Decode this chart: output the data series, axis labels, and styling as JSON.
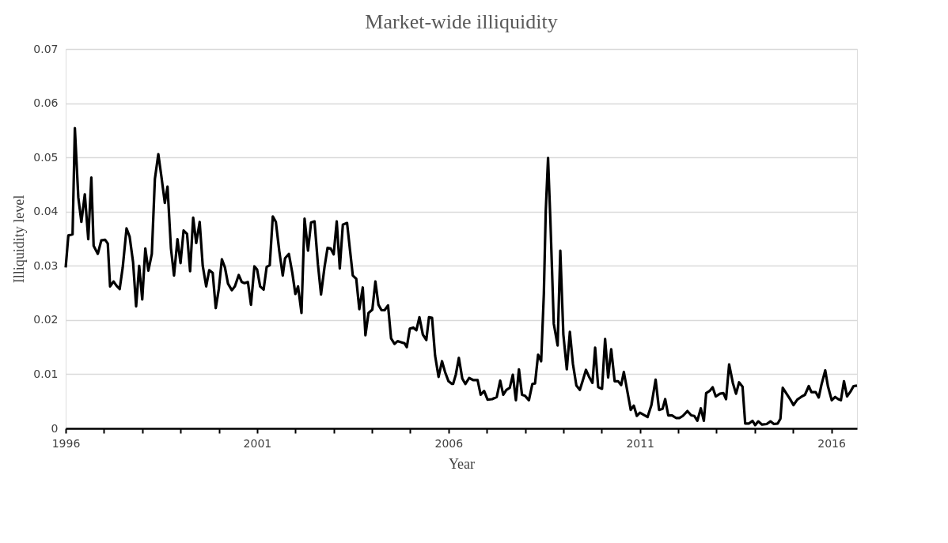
{
  "chart_data": {
    "type": "line",
    "title": "Market-wide illiquidity",
    "xlabel": "Year",
    "ylabel": "Illiquidity level",
    "x": [
      1996.0,
      1996.07,
      1996.18,
      1996.24,
      1996.33,
      1996.41,
      1996.5,
      1996.59,
      1996.67,
      1996.73,
      1996.84,
      1996.93,
      1997.03,
      1997.1,
      1997.16,
      1997.25,
      1997.33,
      1997.41,
      1997.49,
      1997.59,
      1997.67,
      1997.76,
      1997.84,
      1997.92,
      1998.0,
      1998.08,
      1998.16,
      1998.25,
      1998.33,
      1998.42,
      1998.5,
      1998.59,
      1998.66,
      1998.75,
      1998.83,
      1998.92,
      1999.0,
      1999.08,
      1999.17,
      1999.25,
      1999.33,
      1999.41,
      1999.5,
      1999.58,
      1999.67,
      1999.75,
      1999.84,
      1999.92,
      2000.0,
      2000.08,
      2000.16,
      2000.24,
      2000.34,
      2000.42,
      2000.52,
      2000.6,
      2000.67,
      2000.76,
      2000.84,
      2000.93,
      2001.0,
      2001.08,
      2001.17,
      2001.25,
      2001.33,
      2001.41,
      2001.49,
      2001.58,
      2001.67,
      2001.73,
      2001.83,
      2001.92,
      2002.0,
      2002.07,
      2002.16,
      2002.24,
      2002.33,
      2002.41,
      2002.5,
      2002.59,
      2002.67,
      2002.76,
      2002.84,
      2002.92,
      2003.0,
      2003.08,
      2003.16,
      2003.24,
      2003.35,
      2003.43,
      2003.5,
      2003.59,
      2003.67,
      2003.76,
      2003.83,
      2003.91,
      2004.01,
      2004.09,
      2004.17,
      2004.25,
      2004.33,
      2004.42,
      2004.5,
      2004.59,
      2004.67,
      2004.76,
      2004.85,
      2004.91,
      2004.99,
      2005.08,
      2005.16,
      2005.24,
      2005.33,
      2005.42,
      2005.49,
      2005.57,
      2005.65,
      2005.74,
      2005.83,
      2005.91,
      2006.0,
      2006.09,
      2006.12,
      2006.19,
      2006.27,
      2006.36,
      2006.44,
      2006.54,
      2006.65,
      2006.76,
      2006.84,
      2006.93,
      2007.02,
      2007.14,
      2007.26,
      2007.35,
      2007.43,
      2007.51,
      2007.6,
      2007.68,
      2007.76,
      2007.84,
      2007.92,
      2008.0,
      2008.1,
      2008.19,
      2008.26,
      2008.34,
      2008.42,
      2008.49,
      2008.54,
      2008.6,
      2008.66,
      2008.75,
      2008.85,
      2008.92,
      2009.0,
      2009.09,
      2009.17,
      2009.25,
      2009.34,
      2009.43,
      2009.51,
      2009.59,
      2009.68,
      2009.76,
      2009.83,
      2009.91,
      2010.01,
      2010.09,
      2010.17,
      2010.25,
      2010.34,
      2010.43,
      2010.51,
      2010.58,
      2010.66,
      2010.76,
      2010.84,
      2010.92,
      2011.0,
      2011.2,
      2011.3,
      2011.41,
      2011.5,
      2011.59,
      2011.66,
      2011.74,
      2011.84,
      2011.95,
      2012.03,
      2012.12,
      2012.24,
      2012.34,
      2012.42,
      2012.5,
      2012.59,
      2012.67,
      2012.73,
      2012.82,
      2012.9,
      2012.98,
      2013.09,
      2013.18,
      2013.25,
      2013.33,
      2013.43,
      2013.51,
      2013.59,
      2013.68,
      2013.75,
      2013.85,
      2013.94,
      2014.01,
      2014.09,
      2014.19,
      2014.31,
      2014.41,
      2014.5,
      2014.6,
      2014.67,
      2014.73,
      2014.84,
      2014.93,
      2015.01,
      2015.11,
      2015.21,
      2015.31,
      2015.41,
      2015.48,
      2015.59,
      2015.67,
      2015.74,
      2015.84,
      2015.91,
      2016.01,
      2016.1,
      2016.18,
      2016.25,
      2016.33,
      2016.41,
      2016.5,
      2016.58,
      2016.67
    ],
    "series": [
      {
        "color": "#000000",
        "values": [
          0.0297,
          0.0356,
          0.0358,
          0.0554,
          0.0426,
          0.0381,
          0.0432,
          0.0349,
          0.0463,
          0.0337,
          0.0322,
          0.0347,
          0.0348,
          0.0341,
          0.0262,
          0.0271,
          0.0263,
          0.0257,
          0.0297,
          0.0369,
          0.0354,
          0.0307,
          0.0225,
          0.03,
          0.0238,
          0.0332,
          0.0291,
          0.0322,
          0.046,
          0.0506,
          0.0465,
          0.0416,
          0.0446,
          0.0332,
          0.0282,
          0.0349,
          0.0305,
          0.0365,
          0.0359,
          0.029,
          0.0389,
          0.0342,
          0.0381,
          0.03,
          0.0262,
          0.0292,
          0.0287,
          0.0222,
          0.0257,
          0.0312,
          0.0297,
          0.0267,
          0.0255,
          0.0262,
          0.0283,
          0.027,
          0.0268,
          0.027,
          0.0228,
          0.0299,
          0.0293,
          0.0262,
          0.0256,
          0.0298,
          0.0301,
          0.0391,
          0.0381,
          0.0327,
          0.0282,
          0.0314,
          0.0322,
          0.0287,
          0.0248,
          0.0262,
          0.0213,
          0.0387,
          0.0328,
          0.038,
          0.0382,
          0.0302,
          0.0247,
          0.0297,
          0.0333,
          0.0332,
          0.0321,
          0.0382,
          0.0295,
          0.0376,
          0.0379,
          0.0327,
          0.0282,
          0.0276,
          0.022,
          0.026,
          0.0172,
          0.0213,
          0.0219,
          0.0271,
          0.0228,
          0.0218,
          0.0218,
          0.0227,
          0.0166,
          0.0156,
          0.0161,
          0.0159,
          0.0157,
          0.015,
          0.0184,
          0.0186,
          0.0181,
          0.0205,
          0.0173,
          0.0163,
          0.0205,
          0.0204,
          0.0134,
          0.0095,
          0.0124,
          0.0104,
          0.0087,
          0.0082,
          0.0082,
          0.0099,
          0.013,
          0.0092,
          0.0082,
          0.0093,
          0.0089,
          0.0089,
          0.0062,
          0.0069,
          0.0053,
          0.0054,
          0.0058,
          0.0088,
          0.0062,
          0.0071,
          0.0075,
          0.0099,
          0.0052,
          0.0109,
          0.0062,
          0.006,
          0.0052,
          0.0082,
          0.0083,
          0.0136,
          0.0124,
          0.0248,
          0.0401,
          0.0499,
          0.0386,
          0.0193,
          0.0153,
          0.0328,
          0.0173,
          0.0109,
          0.0178,
          0.0119,
          0.0079,
          0.0071,
          0.0089,
          0.0108,
          0.0094,
          0.0084,
          0.0149,
          0.0076,
          0.0073,
          0.0165,
          0.0094,
          0.0146,
          0.0087,
          0.0087,
          0.008,
          0.0104,
          0.0073,
          0.0034,
          0.0042,
          0.0023,
          0.0029,
          0.0021,
          0.0043,
          0.009,
          0.0034,
          0.0036,
          0.0054,
          0.0024,
          0.0024,
          0.0019,
          0.0019,
          0.0023,
          0.0032,
          0.0024,
          0.0023,
          0.0014,
          0.0037,
          0.0014,
          0.0065,
          0.0069,
          0.0076,
          0.0059,
          0.0064,
          0.0065,
          0.0054,
          0.0118,
          0.0083,
          0.0064,
          0.0085,
          0.0077,
          0.0009,
          0.0009,
          0.0014,
          0.0006,
          0.0013,
          0.0007,
          0.0008,
          0.0013,
          0.0008,
          0.0009,
          0.0018,
          0.0075,
          0.0063,
          0.0053,
          0.0043,
          0.0053,
          0.0058,
          0.0062,
          0.0078,
          0.0067,
          0.0067,
          0.0057,
          0.008,
          0.0107,
          0.0078,
          0.0052,
          0.0058,
          0.0054,
          0.0052,
          0.0087,
          0.0059,
          0.0068,
          0.0078,
          0.0079
        ]
      }
    ],
    "xlim": [
      1996,
      2016.67
    ],
    "xticks": [
      1996,
      {
        "value": 1997,
        "label": null
      },
      {
        "value": 1998,
        "label": null
      },
      {
        "value": 1999,
        "label": null
      },
      {
        "value": 2000,
        "label": null
      },
      2001,
      {
        "value": 2002,
        "label": null
      },
      {
        "value": 2003,
        "label": null
      },
      {
        "value": 2004,
        "label": null
      },
      {
        "value": 2005,
        "label": null
      },
      2006,
      {
        "value": 2007,
        "label": null
      },
      {
        "value": 2008,
        "label": null
      },
      {
        "value": 2009,
        "label": null
      },
      {
        "value": 2010,
        "label": null
      },
      2011,
      {
        "value": 2012,
        "label": null
      },
      {
        "value": 2013,
        "label": null
      },
      {
        "value": 2014,
        "label": null
      },
      {
        "value": 2015,
        "label": null
      },
      2016
    ],
    "ylim": [
      0,
      0.07
    ],
    "yticks": [
      0,
      0.01,
      0.02,
      0.03,
      0.04,
      0.05,
      0.06,
      0.07
    ],
    "grid": "y",
    "line_style": "solid"
  }
}
